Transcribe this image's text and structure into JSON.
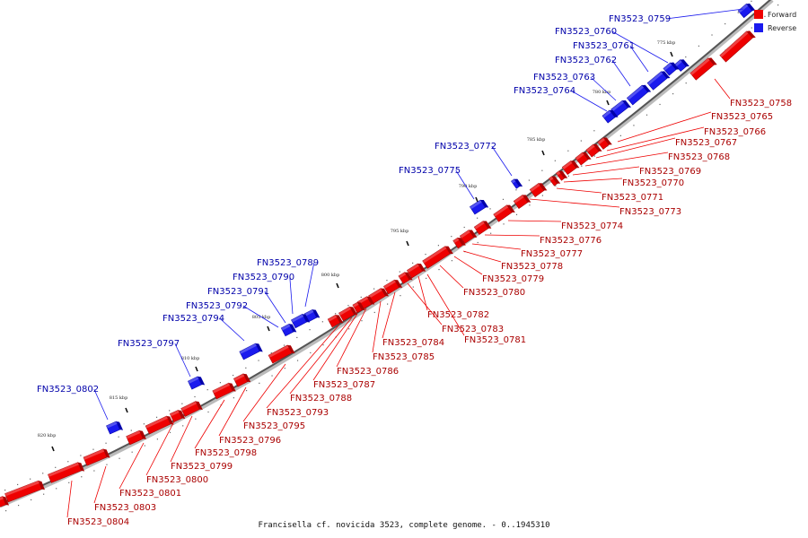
{
  "colors": {
    "forward": "#ee0000",
    "forward_dark": "#aa0000",
    "reverse": "#1a1aee",
    "reverse_dark": "#0000aa",
    "backbone": "#555555"
  },
  "legend": {
    "forward_label": "Forward",
    "reverse_label": "Reverse"
  },
  "footer": "Francisella cf. novicida 3523, complete genome. - 0..1945310",
  "kbp_ticks": [
    "775 kbp",
    "780 kbp",
    "785 kbp",
    "790 kbp",
    "795 kbp",
    "800 kbp",
    "805 kbp",
    "810 kbp",
    "815 kbp",
    "820 kbp"
  ],
  "reverse_genes": [
    "FN3523_0759",
    "FN3523_0760",
    "FN3523_0761",
    "FN3523_0762",
    "FN3523_0763",
    "FN3523_0764",
    "FN3523_0772",
    "FN3523_0775",
    "FN3523_0789",
    "FN3523_0790",
    "FN3523_0791",
    "FN3523_0792",
    "FN3523_0794",
    "FN3523_0797",
    "FN3523_0802"
  ],
  "forward_genes": [
    "FN3523_0758",
    "FN3523_0765",
    "FN3523_0766",
    "FN3523_0767",
    "FN3523_0768",
    "FN3523_0769",
    "FN3523_0770",
    "FN3523_0771",
    "FN3523_0773",
    "FN3523_0774",
    "FN3523_0776",
    "FN3523_0777",
    "FN3523_0778",
    "FN3523_0779",
    "FN3523_0780",
    "FN3523_0782",
    "FN3523_0783",
    "FN3523_0781",
    "FN3523_0784",
    "FN3523_0785",
    "FN3523_0786",
    "FN3523_0787",
    "FN3523_0788",
    "FN3523_0793",
    "FN3523_0795",
    "FN3523_0796",
    "FN3523_0798",
    "FN3523_0799",
    "FN3523_0800",
    "FN3523_0801",
    "FN3523_0803",
    "FN3523_0804"
  ]
}
